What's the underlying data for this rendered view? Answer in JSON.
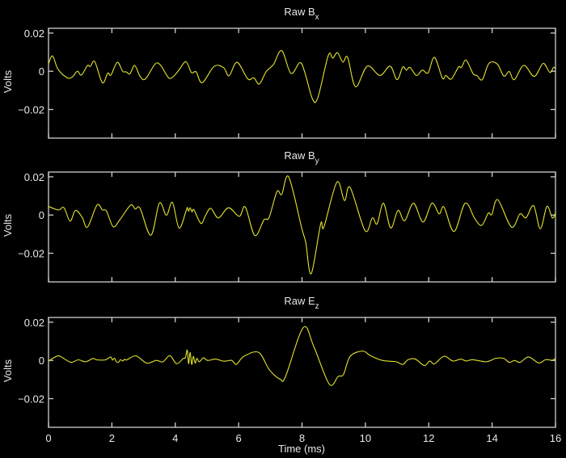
{
  "colors": {
    "background": "#000000",
    "axis": "#cfcfcf",
    "line": "#e3e330"
  },
  "chart_data": [
    {
      "type": "line",
      "title": "Raw B",
      "title_sub": "x",
      "xlabel": "",
      "ylabel": "Volts",
      "xlim": [
        0,
        16
      ],
      "ylim": [
        -0.035,
        0.0225
      ],
      "xticks": [
        0,
        2,
        4,
        6,
        8,
        10,
        12,
        14,
        16
      ],
      "xtick_labels": [],
      "yticks": [
        0.02,
        0,
        -0.02
      ],
      "ytick_labels": [
        "0.02",
        "0",
        "−0.02"
      ],
      "grid": false,
      "series": [
        {
          "name": "Raw Bx",
          "points": [
            [
              0,
              0.004
            ],
            [
              0.13,
              0.008
            ],
            [
              0.3,
              0.001
            ],
            [
              0.59,
              -0.0034
            ],
            [
              0.75,
              -0.003
            ],
            [
              0.91,
              0
            ],
            [
              1.04,
              -0.002
            ],
            [
              1.23,
              0.003
            ],
            [
              1.32,
              0.0025
            ],
            [
              1.46,
              0.005
            ],
            [
              1.7,
              -0.006
            ],
            [
              1.87,
              -0.001
            ],
            [
              1.97,
              -0.002
            ],
            [
              2.17,
              0.0047
            ],
            [
              2.34,
              0
            ],
            [
              2.45,
              -0.0003
            ],
            [
              2.57,
              -0.0013
            ],
            [
              2.72,
              0.003
            ],
            [
              2.89,
              -0.0027
            ],
            [
              3.06,
              -0.004
            ],
            [
              3.36,
              0.0037
            ],
            [
              3.53,
              0.0033
            ],
            [
              3.79,
              -0.0034
            ],
            [
              3.96,
              -0.0024
            ],
            [
              4.13,
              0.001
            ],
            [
              4.34,
              0.005
            ],
            [
              4.51,
              -0.0007
            ],
            [
              4.66,
              -0.0003
            ],
            [
              4.85,
              -0.006
            ],
            [
              5.23,
              0.0026
            ],
            [
              5.53,
              0.0018
            ],
            [
              5.7,
              -0.0024
            ],
            [
              5.95,
              0.0047
            ],
            [
              6.29,
              -0.004
            ],
            [
              6.48,
              -0.0034
            ],
            [
              6.65,
              -0.0067
            ],
            [
              6.87,
              -0.0002
            ],
            [
              7.1,
              0.0036
            ],
            [
              7.36,
              0.0108
            ],
            [
              7.65,
              -0.0011
            ],
            [
              7.93,
              0.0045
            ],
            [
              8.08,
              -0.0001
            ],
            [
              8.33,
              -0.0145
            ],
            [
              8.5,
              -0.0138
            ],
            [
              8.83,
              0.0083
            ],
            [
              8.97,
              0.0069
            ],
            [
              9.12,
              0.0097
            ],
            [
              9.29,
              0.0048
            ],
            [
              9.44,
              0.0073
            ],
            [
              9.69,
              -0.0081
            ],
            [
              10.06,
              0.0027
            ],
            [
              10.46,
              -0.0022
            ],
            [
              10.78,
              0.0027
            ],
            [
              11.0,
              -0.0044
            ],
            [
              11.18,
              0.0022
            ],
            [
              11.29,
              0.0006
            ],
            [
              11.41,
              0.002
            ],
            [
              11.61,
              -0.0022
            ],
            [
              11.8,
              0.0006
            ],
            [
              11.98,
              -0.0008
            ],
            [
              12.18,
              0.0073
            ],
            [
              12.43,
              -0.0036
            ],
            [
              12.54,
              -0.0022
            ],
            [
              12.71,
              -0.0041
            ],
            [
              12.94,
              0.0022
            ],
            [
              13.03,
              0.002
            ],
            [
              13.18,
              0.0058
            ],
            [
              13.4,
              -0.0013
            ],
            [
              13.52,
              -0.0022
            ],
            [
              13.69,
              -0.0044
            ],
            [
              13.9,
              0.0041
            ],
            [
              14.16,
              0.0038
            ],
            [
              14.37,
              -0.0025
            ],
            [
              14.54,
              -0.0001
            ],
            [
              14.7,
              -0.0044
            ],
            [
              15.0,
              0.0031
            ],
            [
              15.33,
              -0.0027
            ],
            [
              15.61,
              0.0041
            ],
            [
              15.82,
              -0.0006
            ],
            [
              15.94,
              0.002
            ],
            [
              16.0,
              0.0013
            ]
          ]
        }
      ]
    },
    {
      "type": "line",
      "title": "Raw B",
      "title_sub": "y",
      "xlabel": "",
      "ylabel": "Volts",
      "xlim": [
        0,
        16
      ],
      "ylim": [
        -0.035,
        0.0225
      ],
      "xticks": [
        0,
        2,
        4,
        6,
        8,
        10,
        12,
        14,
        16
      ],
      "xtick_labels": [],
      "yticks": [
        0.02,
        0,
        -0.02
      ],
      "ytick_labels": [
        "0.02",
        "0",
        "−0.02"
      ],
      "grid": false,
      "series": [
        {
          "name": "Raw By",
          "points": [
            [
              0,
              0.0045
            ],
            [
              0.21,
              0.0031
            ],
            [
              0.34,
              0.0027
            ],
            [
              0.49,
              0.0038
            ],
            [
              0.68,
              -0.0032
            ],
            [
              0.85,
              0.0024
            ],
            [
              1.06,
              -0.0011
            ],
            [
              1.23,
              -0.0063
            ],
            [
              1.53,
              0.0052
            ],
            [
              1.7,
              0.0027
            ],
            [
              1.83,
              0.0021
            ],
            [
              2.04,
              -0.0061
            ],
            [
              2.25,
              -0.0025
            ],
            [
              2.59,
              0.0052
            ],
            [
              2.74,
              0.0031
            ],
            [
              2.89,
              0.0035
            ],
            [
              3.23,
              -0.0106
            ],
            [
              3.5,
              0.0063
            ],
            [
              3.72,
              -0.0001
            ],
            [
              3.91,
              0.0066
            ],
            [
              4.12,
              -0.0068
            ],
            [
              4.34,
              0.0021
            ],
            [
              4.38,
              0.004
            ],
            [
              4.42,
              0.002
            ],
            [
              4.47,
              0.0038
            ],
            [
              4.53,
              0.0017
            ],
            [
              4.59,
              0.0027
            ],
            [
              4.81,
              -0.0044
            ],
            [
              4.95,
              -0.0004
            ],
            [
              5.12,
              0.0035
            ],
            [
              5.36,
              -0.0015
            ],
            [
              5.68,
              0.0038
            ],
            [
              6.02,
              -0.0007
            ],
            [
              6.21,
              0.0042
            ],
            [
              6.51,
              -0.0107
            ],
            [
              6.8,
              -0.0025
            ],
            [
              6.96,
              -0.0013
            ],
            [
              7.21,
              0.0123
            ],
            [
              7.36,
              0.0108
            ],
            [
              7.58,
              0.02
            ],
            [
              7.99,
              -0.0068
            ],
            [
              8.12,
              -0.0145
            ],
            [
              8.29,
              -0.0307
            ],
            [
              8.59,
              -0.0046
            ],
            [
              8.69,
              -0.0063
            ],
            [
              9.1,
              0.0172
            ],
            [
              9.34,
              0.0076
            ],
            [
              9.52,
              0.0144
            ],
            [
              9.99,
              -0.0082
            ],
            [
              10.22,
              -0.0015
            ],
            [
              10.37,
              -0.0046
            ],
            [
              10.57,
              0.0062
            ],
            [
              10.8,
              -0.0068
            ],
            [
              11.03,
              0.0024
            ],
            [
              11.24,
              -0.003
            ],
            [
              11.52,
              0.0062
            ],
            [
              11.82,
              -0.0037
            ],
            [
              12.1,
              0.0062
            ],
            [
              12.33,
              0.0006
            ],
            [
              12.48,
              0.0042
            ],
            [
              12.8,
              -0.0086
            ],
            [
              13.15,
              0.0062
            ],
            [
              13.45,
              -0.0018
            ],
            [
              13.67,
              -0.0054
            ],
            [
              13.88,
              0.001
            ],
            [
              13.99,
              0.0003
            ],
            [
              14.18,
              0.008
            ],
            [
              14.61,
              -0.0063
            ],
            [
              14.88,
              0.0006
            ],
            [
              15.07,
              -0.0014
            ],
            [
              15.31,
              0.0049
            ],
            [
              15.52,
              -0.0072
            ],
            [
              15.73,
              0.0045
            ],
            [
              15.9,
              -0.0015
            ],
            [
              16.0,
              0.001
            ]
          ]
        }
      ]
    },
    {
      "type": "line",
      "title": "Raw E",
      "title_sub": "z",
      "xlabel": "Time (ms)",
      "ylabel": "Volts",
      "xlim": [
        0,
        16
      ],
      "ylim": [
        -0.035,
        0.0225
      ],
      "xticks": [
        0,
        2,
        4,
        6,
        8,
        10,
        12,
        14,
        16
      ],
      "xtick_labels": [
        "0",
        "2",
        "4",
        "6",
        "8",
        "10",
        "12",
        "14",
        "16"
      ],
      "yticks": [
        0.02,
        0,
        -0.02
      ],
      "ytick_labels": [
        "0.02",
        "0",
        "−0.02"
      ],
      "grid": false,
      "series": [
        {
          "name": "Raw Ez",
          "points": [
            [
              0,
              -0.0003
            ],
            [
              0.3,
              0.0024
            ],
            [
              0.51,
              0.0007
            ],
            [
              0.72,
              -0.001
            ],
            [
              0.94,
              0.0003
            ],
            [
              1.17,
              -0.0007
            ],
            [
              1.4,
              0.001
            ],
            [
              1.53,
              0.0003
            ],
            [
              1.79,
              0.0003
            ],
            [
              1.96,
              0.0018
            ],
            [
              2.02,
              0.0002
            ],
            [
              2.08,
              0.0012
            ],
            [
              2.14,
              -0.0006
            ],
            [
              2.21,
              -0.001
            ],
            [
              2.27,
              0.0004
            ],
            [
              2.34,
              -0.0003
            ],
            [
              2.4,
              0.0006
            ],
            [
              2.47,
              0.0003
            ],
            [
              2.76,
              0.0024
            ],
            [
              3.1,
              -0.0014
            ],
            [
              3.4,
              0
            ],
            [
              3.61,
              -0.0007
            ],
            [
              3.83,
              0.0025
            ],
            [
              4.04,
              -0.0017
            ],
            [
              4.25,
              0.001
            ],
            [
              4.32,
              0.0014
            ],
            [
              4.38,
              0.0054
            ],
            [
              4.42,
              -0.0017
            ],
            [
              4.47,
              0.0042
            ],
            [
              4.52,
              -0.0021
            ],
            [
              4.57,
              0.0021
            ],
            [
              4.63,
              -0.0014
            ],
            [
              4.68,
              0.0011
            ],
            [
              4.76,
              -0.0007
            ],
            [
              4.89,
              0.0014
            ],
            [
              5.02,
              0
            ],
            [
              5.27,
              0.0007
            ],
            [
              5.53,
              -0.0004
            ],
            [
              5.78,
              0
            ],
            [
              5.93,
              -0.0021
            ],
            [
              6.16,
              0.0021
            ],
            [
              6.63,
              0.0042
            ],
            [
              6.97,
              -0.0049
            ],
            [
              7.31,
              -0.0098
            ],
            [
              7.48,
              -0.0084
            ],
            [
              8.04,
              0.0172
            ],
            [
              8.37,
              0.0074
            ],
            [
              8.86,
              -0.0124
            ],
            [
              9.14,
              -0.0084
            ],
            [
              9.31,
              -0.0073
            ],
            [
              9.52,
              0.0021
            ],
            [
              9.91,
              0.0049
            ],
            [
              10.16,
              0.0025
            ],
            [
              10.54,
              0
            ],
            [
              10.97,
              -0.0007
            ],
            [
              11.18,
              -0.0021
            ],
            [
              11.35,
              0.0004
            ],
            [
              11.58,
              0.0007
            ],
            [
              11.86,
              -0.0027
            ],
            [
              12.03,
              -0.0003
            ],
            [
              12.18,
              -0.0018
            ],
            [
              12.48,
              0.0022
            ],
            [
              12.76,
              -0.0003
            ],
            [
              13.01,
              0.0007
            ],
            [
              13.18,
              -0.0003
            ],
            [
              13.39,
              0.0004
            ],
            [
              13.82,
              -0.0007
            ],
            [
              14.11,
              0.0011
            ],
            [
              14.37,
              0.001
            ],
            [
              14.54,
              -0.001
            ],
            [
              14.71,
              0
            ],
            [
              14.88,
              -0.001
            ],
            [
              15.15,
              0.0018
            ],
            [
              15.47,
              -0.0013
            ],
            [
              15.69,
              0.0004
            ],
            [
              15.9,
              0.0001
            ],
            [
              16.0,
              0.0011
            ]
          ]
        }
      ]
    }
  ]
}
